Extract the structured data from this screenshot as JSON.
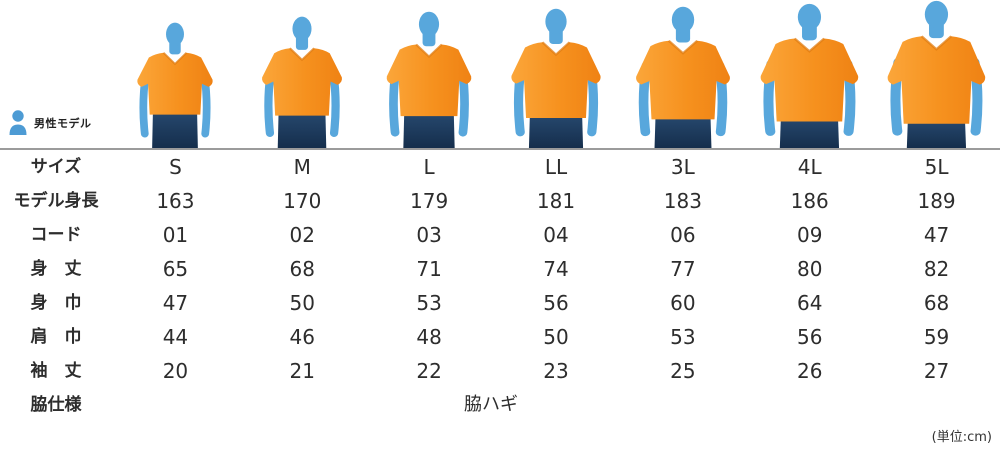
{
  "banner": {
    "badge_label": "男性モデル",
    "model_figure_alt": "モデル着用イメージ"
  },
  "table": {
    "rows": [
      {
        "key": "size",
        "style": "sizes",
        "label": "サイズ",
        "values": [
          "S",
          "M",
          "L",
          "LL",
          "3L",
          "4L",
          "5L"
        ]
      },
      {
        "key": "model-height",
        "style": "gray",
        "label": "モデル身長",
        "values": [
          "163",
          "170",
          "179",
          "181",
          "183",
          "186",
          "189"
        ]
      },
      {
        "key": "code",
        "style": "code",
        "label": "コード",
        "values": [
          "01",
          "02",
          "03",
          "04",
          "06",
          "09",
          "47"
        ]
      },
      {
        "key": "body-length",
        "style": "plain",
        "label": "身　丈",
        "values": [
          "65",
          "68",
          "71",
          "74",
          "77",
          "80",
          "82"
        ]
      },
      {
        "key": "body-width",
        "style": "plain",
        "label": "身　巾",
        "values": [
          "47",
          "50",
          "53",
          "56",
          "60",
          "64",
          "68"
        ]
      },
      {
        "key": "shoulder-width",
        "style": "plain",
        "label": "肩　巾",
        "values": [
          "44",
          "46",
          "48",
          "50",
          "53",
          "56",
          "59"
        ]
      },
      {
        "key": "sleeve-length",
        "style": "plain",
        "label": "袖　丈",
        "values": [
          "20",
          "21",
          "22",
          "23",
          "25",
          "26",
          "27"
        ]
      },
      {
        "key": "side-spec",
        "style": "footer",
        "label": "脇仕様",
        "merged_value": "脇ハギ"
      }
    ]
  },
  "unit_note": "(単位:cm)",
  "colors": {
    "accent_blue": "#2b7ac0",
    "skin_blue": "#58a7dc",
    "shirt_orange": "#f6911e",
    "shirt_orange_dark": "#e07c12",
    "jeans_navy": "#1e3d62",
    "gray_row_bg": "#dcdcdc",
    "border_dark": "#9b9b9b",
    "border_light": "#d9d9d9"
  }
}
